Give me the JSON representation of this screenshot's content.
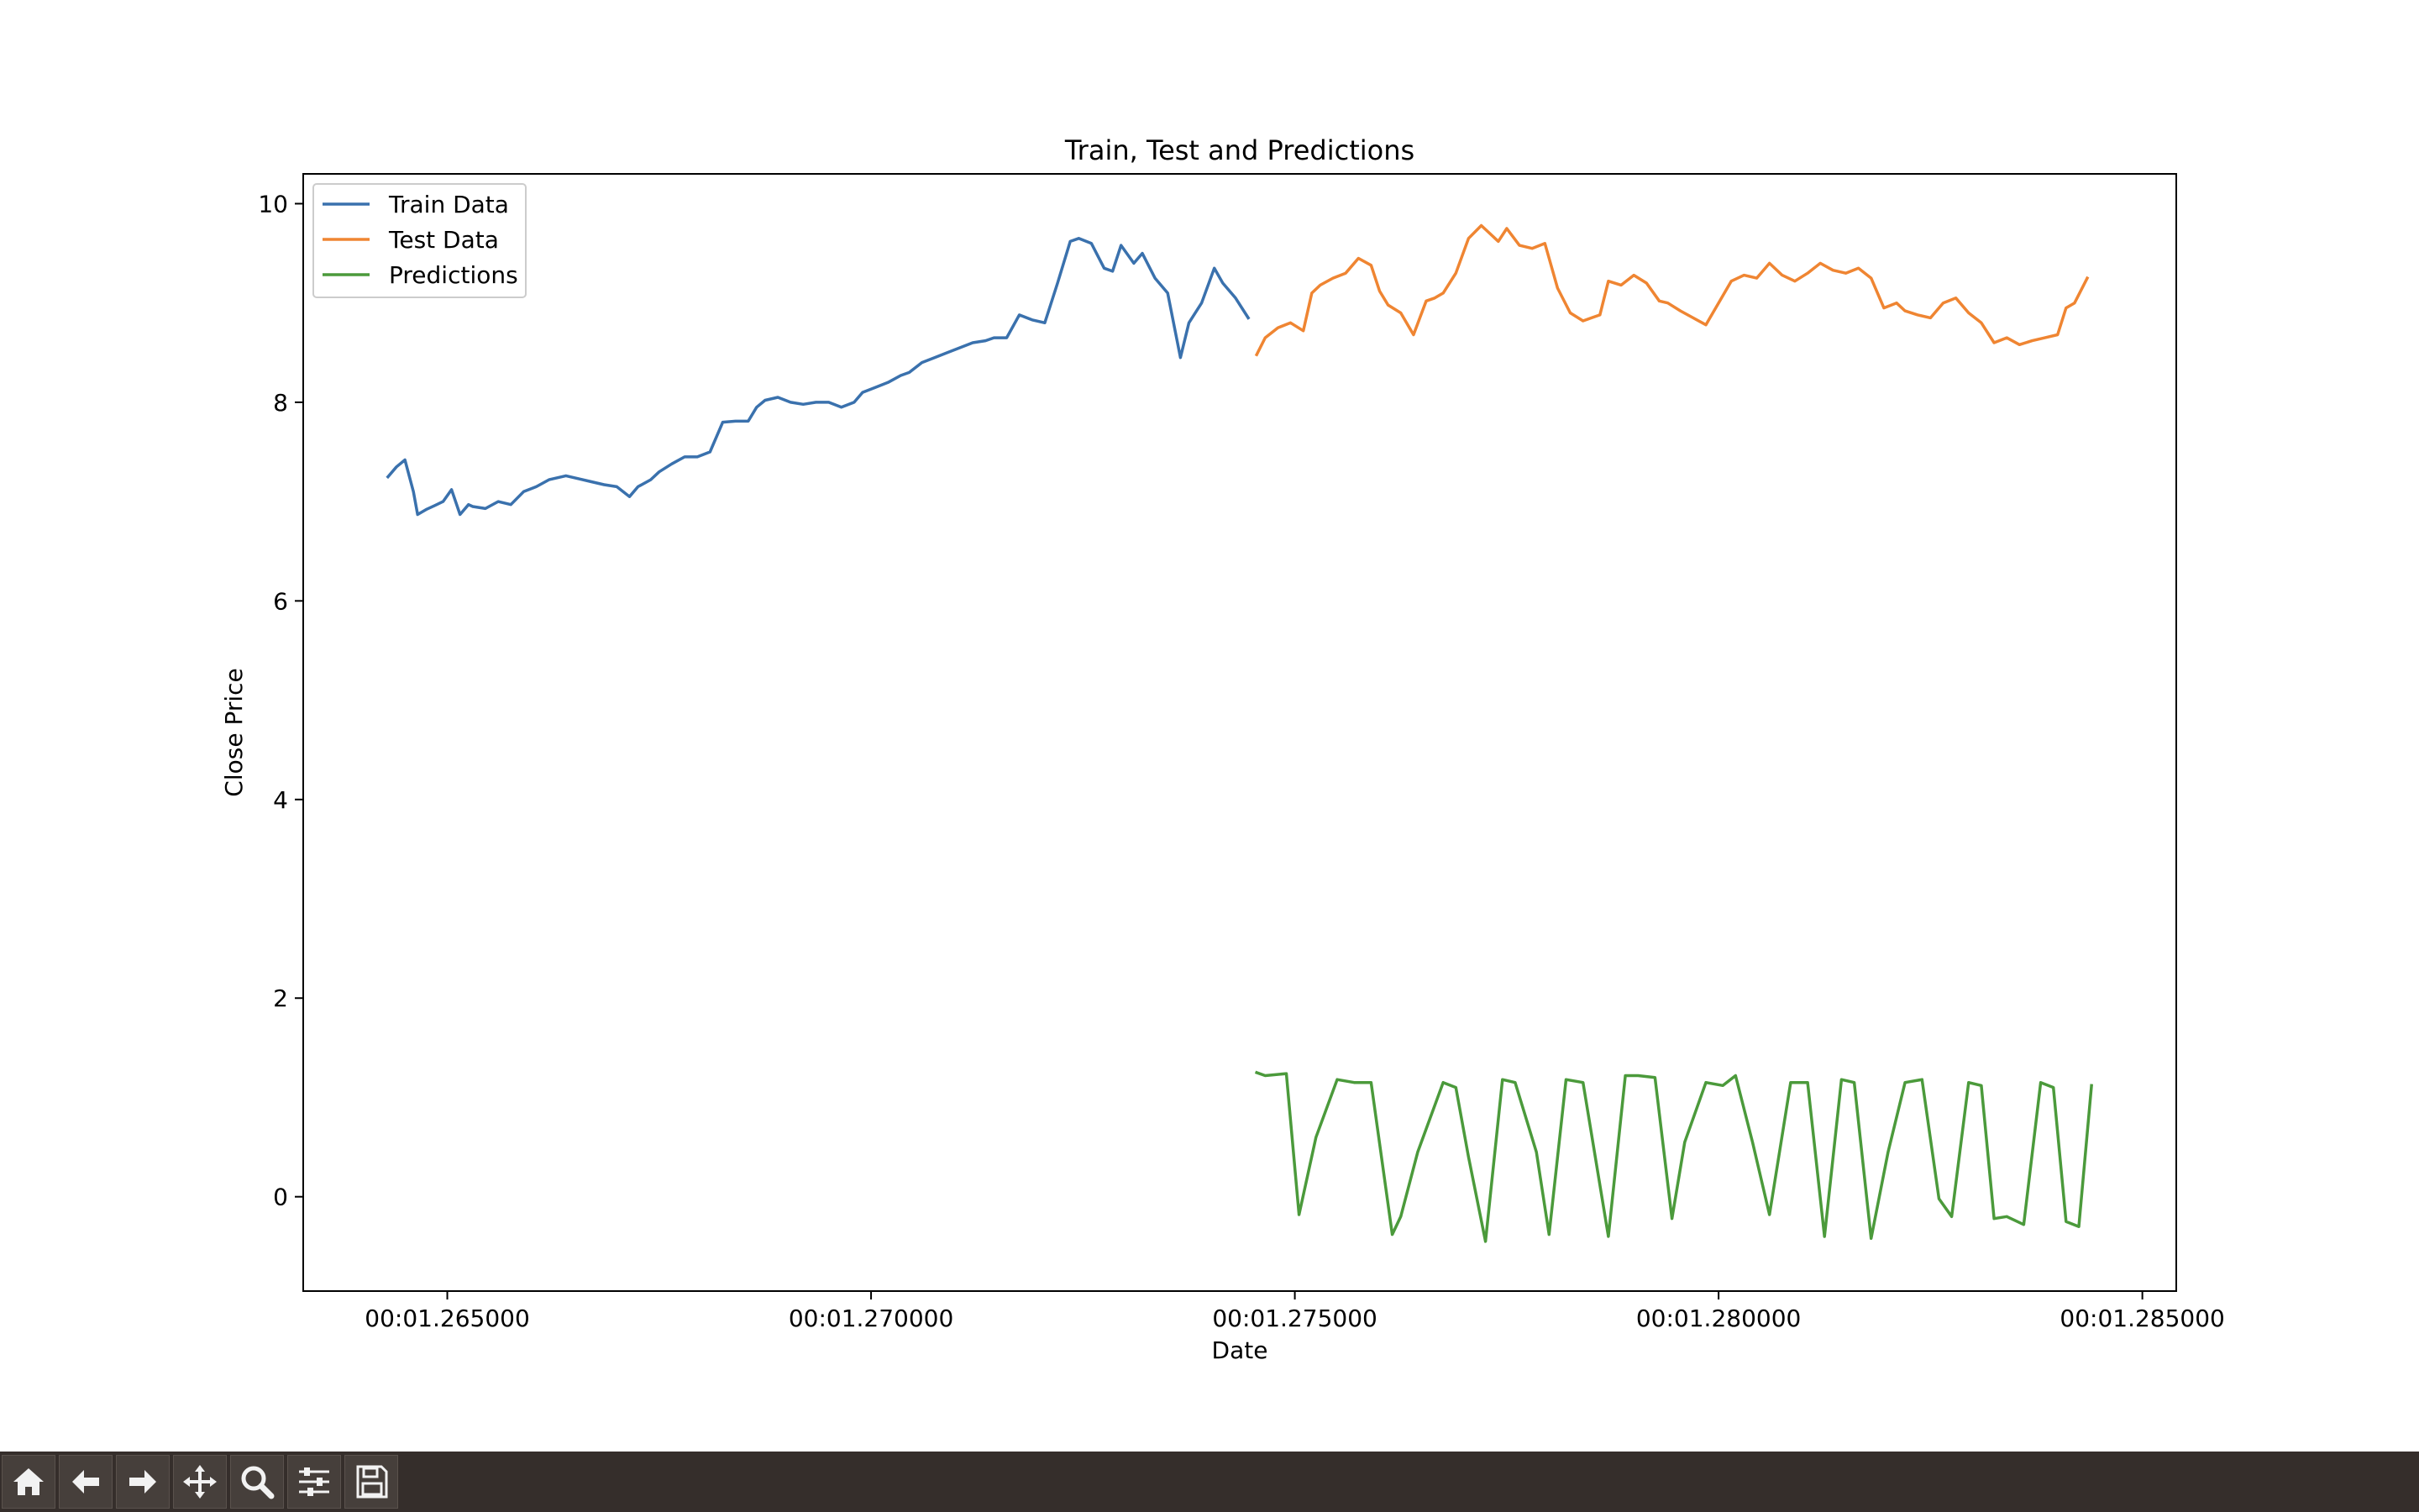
{
  "chart_data": {
    "type": "line",
    "title": "Train, Test and Predictions",
    "xlabel": "Date",
    "ylabel": "Close Price",
    "xlim": [
      1.2633,
      1.2854
    ],
    "ylim": [
      -0.95,
      10.3
    ],
    "xticks": [
      1.265,
      1.27,
      1.275,
      1.28,
      1.285
    ],
    "xtick_labels": [
      "00:01.265000",
      "00:01.270000",
      "00:01.275000",
      "00:01.280000",
      "00:01.285000"
    ],
    "yticks": [
      0,
      2,
      4,
      6,
      8,
      10
    ],
    "ytick_labels": [
      "0",
      "2",
      "4",
      "6",
      "8",
      "10"
    ],
    "grid": false,
    "legend_position": "top-left",
    "series": [
      {
        "name": "Train Data",
        "color": "#3a71ad",
        "x": [
          1.2643,
          1.2644,
          1.2645,
          1.2646,
          1.26465,
          1.26475,
          1.26485,
          1.26495,
          1.26505,
          1.26515,
          1.26525,
          1.2653,
          1.26545,
          1.2656,
          1.26575,
          1.2659,
          1.26605,
          1.2662,
          1.2664,
          1.26655,
          1.2667,
          1.26685,
          1.267,
          1.26715,
          1.26725,
          1.2674,
          1.2675,
          1.26765,
          1.2678,
          1.26795,
          1.2681,
          1.26825,
          1.2684,
          1.26855,
          1.26865,
          1.26875,
          1.2689,
          1.26905,
          1.2692,
          1.26935,
          1.2695,
          1.26965,
          1.2698,
          1.2699,
          1.27005,
          1.2702,
          1.27035,
          1.27045,
          1.2706,
          1.27075,
          1.2709,
          1.27105,
          1.2712,
          1.27135,
          1.27145,
          1.2716,
          1.27175,
          1.2719,
          1.27205,
          1.2722,
          1.27235,
          1.27245,
          1.2726,
          1.27275,
          1.27285,
          1.27295,
          1.2731,
          1.2732,
          1.27335,
          1.2735,
          1.27365,
          1.27375,
          1.2739,
          1.27405,
          1.27415,
          1.2743,
          1.27445
        ],
        "y": [
          7.25,
          7.35,
          7.42,
          7.1,
          6.87,
          6.92,
          6.96,
          7.0,
          7.12,
          6.87,
          6.97,
          6.95,
          6.93,
          7.0,
          6.97,
          7.1,
          7.15,
          7.22,
          7.26,
          7.23,
          7.2,
          7.17,
          7.15,
          7.05,
          7.15,
          7.22,
          7.3,
          7.38,
          7.45,
          7.45,
          7.5,
          7.8,
          7.81,
          7.81,
          7.95,
          8.02,
          8.05,
          8.0,
          7.98,
          8.0,
          8.0,
          7.95,
          8.0,
          8.1,
          8.15,
          8.2,
          8.27,
          8.3,
          8.4,
          8.45,
          8.5,
          8.55,
          8.6,
          8.62,
          8.65,
          8.65,
          8.88,
          8.83,
          8.8,
          9.2,
          9.62,
          9.65,
          9.6,
          9.35,
          9.32,
          9.58,
          9.4,
          9.5,
          9.25,
          9.1,
          8.45,
          8.8,
          9.0,
          9.35,
          9.2,
          9.05,
          8.85
        ]
      },
      {
        "name": "Test Data",
        "color": "#ef8532",
        "x": [
          1.27455,
          1.27465,
          1.2748,
          1.27495,
          1.2751,
          1.2752,
          1.2753,
          1.27545,
          1.2756,
          1.27575,
          1.2759,
          1.276,
          1.2761,
          1.27625,
          1.2764,
          1.27655,
          1.27665,
          1.27675,
          1.2769,
          1.27705,
          1.2772,
          1.2773,
          1.2774,
          1.2775,
          1.27765,
          1.2778,
          1.27795,
          1.2781,
          1.27825,
          1.2784,
          1.2785,
          1.2786,
          1.2787,
          1.27885,
          1.279,
          1.27915,
          1.2793,
          1.2794,
          1.27955,
          1.2797,
          1.27985,
          1.28,
          1.28015,
          1.2803,
          1.28045,
          1.2806,
          1.28075,
          1.2809,
          1.28105,
          1.2812,
          1.28135,
          1.2815,
          1.28165,
          1.2818,
          1.28195,
          1.2821,
          1.2822,
          1.28235,
          1.2825,
          1.28265,
          1.2828,
          1.28295,
          1.2831,
          1.28325,
          1.2834,
          1.28355,
          1.2837,
          1.28385,
          1.284,
          1.2841,
          1.2842,
          1.28435
        ],
        "y": [
          8.48,
          8.65,
          8.75,
          8.8,
          8.72,
          9.1,
          9.18,
          9.25,
          9.3,
          9.45,
          9.38,
          9.12,
          8.98,
          8.9,
          8.68,
          9.02,
          9.05,
          9.1,
          9.3,
          9.65,
          9.78,
          9.7,
          9.62,
          9.75,
          9.58,
          9.55,
          9.6,
          9.15,
          8.9,
          8.82,
          8.85,
          8.88,
          9.22,
          9.18,
          9.28,
          9.2,
          9.02,
          9.0,
          8.92,
          8.85,
          8.78,
          9.0,
          9.22,
          9.28,
          9.25,
          9.4,
          9.28,
          9.22,
          9.3,
          9.4,
          9.33,
          9.3,
          9.35,
          9.25,
          8.95,
          9.0,
          8.92,
          8.88,
          8.85,
          9.0,
          9.05,
          8.9,
          8.8,
          8.6,
          8.65,
          8.58,
          8.62,
          8.65,
          8.68,
          8.95,
          9.0,
          9.25
        ]
      },
      {
        "name": "Predictions",
        "color": "#4b9a3b",
        "x": [
          1.27455,
          1.27465,
          1.2749,
          1.27505,
          1.27525,
          1.2755,
          1.2757,
          1.2759,
          1.27615,
          1.27625,
          1.27645,
          1.27675,
          1.2769,
          1.27705,
          1.27725,
          1.27745,
          1.2776,
          1.27785,
          1.278,
          1.2782,
          1.2784,
          1.2787,
          1.2789,
          1.27905,
          1.27925,
          1.27945,
          1.2796,
          1.27985,
          1.28005,
          1.2802,
          1.2804,
          1.2806,
          1.28085,
          1.28105,
          1.28125,
          1.28145,
          1.2816,
          1.2818,
          1.282,
          1.2822,
          1.2824,
          1.2826,
          1.28275,
          1.28295,
          1.2831,
          1.28325,
          1.2834,
          1.2836,
          1.2838,
          1.28395,
          1.2841,
          1.28425,
          1.2844
        ],
        "y": [
          1.25,
          1.22,
          1.24,
          -0.18,
          0.6,
          1.18,
          1.15,
          1.15,
          -0.38,
          -0.2,
          0.45,
          1.15,
          1.1,
          0.4,
          -0.45,
          1.18,
          1.15,
          0.45,
          -0.38,
          1.18,
          1.15,
          -0.4,
          1.22,
          1.22,
          1.2,
          -0.22,
          0.55,
          1.15,
          1.12,
          1.22,
          0.55,
          -0.18,
          1.15,
          1.15,
          -0.4,
          1.18,
          1.15,
          -0.42,
          0.45,
          1.15,
          1.18,
          -0.02,
          -0.2,
          1.15,
          1.12,
          -0.22,
          -0.2,
          -0.28,
          1.15,
          1.1,
          -0.25,
          -0.3,
          1.12
        ]
      }
    ]
  },
  "toolbar": {
    "buttons": [
      {
        "name": "home-icon"
      },
      {
        "name": "back-arrow-icon"
      },
      {
        "name": "forward-arrow-icon"
      },
      {
        "name": "pan-icon"
      },
      {
        "name": "zoom-icon"
      },
      {
        "name": "configure-subplots-icon"
      },
      {
        "name": "save-icon"
      }
    ]
  }
}
